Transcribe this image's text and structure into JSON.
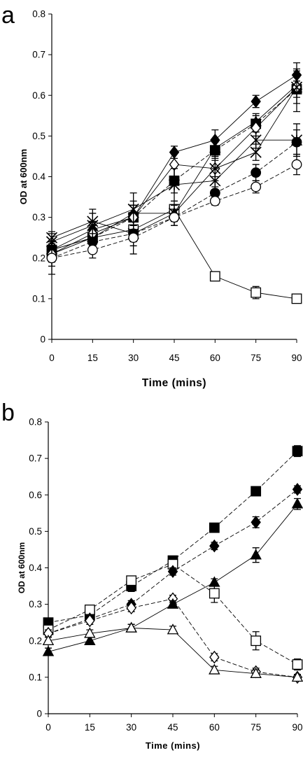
{
  "chart_data": [
    {
      "panel": "a",
      "type": "line",
      "title": "",
      "xlabel": "Time (mins)",
      "ylabel": "OD at 600nm",
      "x": [
        0,
        15,
        30,
        45,
        60,
        75,
        90
      ],
      "x_ticks": [
        "0",
        "15",
        "30",
        "45",
        "60",
        "75",
        "90"
      ],
      "y_ticks": [
        "0",
        "0.1",
        "0.2",
        "0.3",
        "0.4",
        "0.5",
        "0.6",
        "0.7",
        "0.8"
      ],
      "xlim": [
        0,
        90
      ],
      "ylim": [
        0,
        0.8
      ],
      "grid": false,
      "legend": "none",
      "series": [
        {
          "marker": "open-square",
          "line": "solid",
          "values": [
            0.21,
            0.25,
            0.27,
            0.32,
            0.155,
            0.115,
            0.1
          ],
          "err": [
            0.01,
            0.02,
            0.02,
            0.02,
            0.01,
            0.015,
            0.008
          ]
        },
        {
          "marker": "filled-diamond",
          "line": "solid",
          "values": [
            0.22,
            0.27,
            0.3,
            0.46,
            0.49,
            0.585,
            0.65
          ],
          "err": [
            0.02,
            0.02,
            0.03,
            0.015,
            0.025,
            0.015,
            0.015
          ]
        },
        {
          "marker": "filled-square",
          "line": "dashed",
          "values": [
            0.22,
            0.25,
            0.3,
            0.39,
            0.465,
            0.53,
            0.615
          ],
          "err": [
            0.02,
            0.03,
            0.03,
            0.03,
            0.02,
            0.02,
            0.02
          ]
        },
        {
          "marker": "filled-triangle",
          "line": "solid",
          "values": [
            0.22,
            0.25,
            0.31,
            0.31,
            0.47,
            0.535,
            0.625
          ],
          "err": [
            0.02,
            0.03,
            0.02,
            0.02,
            0.02,
            0.02,
            0.02
          ]
        },
        {
          "marker": "open-diamond",
          "line": "solid",
          "values": [
            0.21,
            0.26,
            0.3,
            0.43,
            0.42,
            0.52,
            0.62
          ],
          "err": [
            0.02,
            0.03,
            0.04,
            0.03,
            0.03,
            0.02,
            0.04
          ]
        },
        {
          "marker": "cross",
          "line": "solid",
          "values": [
            0.25,
            0.29,
            0.26,
            0.31,
            0.42,
            0.46,
            0.62
          ],
          "err": [
            0.015,
            0.03,
            0.05,
            0.02,
            0.02,
            0.02,
            0.06
          ]
        },
        {
          "marker": "star",
          "line": "solid",
          "values": [
            0.24,
            0.28,
            0.32,
            0.38,
            0.39,
            0.49,
            0.49
          ],
          "err": [
            0.02,
            0.03,
            0.04,
            0.04,
            0.03,
            0.02,
            0.04
          ]
        },
        {
          "marker": "filled-circle",
          "line": "dashed",
          "values": [
            0.2,
            0.24,
            0.26,
            0.3,
            0.36,
            0.41,
            0.485
          ],
          "err": [
            0.02,
            0.02,
            0.02,
            0.02,
            0.015,
            0.02,
            0.03
          ]
        },
        {
          "marker": "open-circle",
          "line": "dashed",
          "values": [
            0.2,
            0.22,
            0.25,
            0.3,
            0.34,
            0.375,
            0.43
          ],
          "err": [
            0.04,
            0.02,
            0.02,
            0.02,
            0.01,
            0.015,
            0.025
          ]
        }
      ]
    },
    {
      "panel": "b",
      "type": "line",
      "title": "",
      "xlabel": "Time (mins)",
      "ylabel": "OD at 600nm",
      "x": [
        0,
        15,
        30,
        45,
        60,
        75,
        90
      ],
      "x_ticks": [
        "0",
        "15",
        "30",
        "45",
        "60",
        "75",
        "90"
      ],
      "y_ticks": [
        "0",
        "0.1",
        "0.2",
        "0.3",
        "0.4",
        "0.5",
        "0.6",
        "0.7",
        "0.8"
      ],
      "xlim": [
        0,
        90
      ],
      "ylim": [
        0,
        0.8
      ],
      "grid": false,
      "legend": "none",
      "series": [
        {
          "marker": "filled-square",
          "line": "dashed",
          "values": [
            0.25,
            0.27,
            0.35,
            0.42,
            0.51,
            0.61,
            0.72
          ],
          "err": [
            0.01,
            0.01,
            0.015,
            0.01,
            0.01,
            0.008,
            0.015
          ]
        },
        {
          "marker": "open-square",
          "line": "dashed",
          "values": [
            0.23,
            0.285,
            0.365,
            0.41,
            0.33,
            0.2,
            0.135
          ],
          "err": [
            0.01,
            0.01,
            0.01,
            0.01,
            0.025,
            0.025,
            0.015
          ]
        },
        {
          "marker": "filled-diamond",
          "line": "dashed",
          "values": [
            0.22,
            0.26,
            0.3,
            0.39,
            0.46,
            0.525,
            0.615
          ],
          "err": [
            0.01,
            0.01,
            0.01,
            0.01,
            0.01,
            0.015,
            0.01
          ]
        },
        {
          "marker": "open-diamond",
          "line": "dashed",
          "values": [
            0.22,
            0.255,
            0.29,
            0.315,
            0.155,
            0.115,
            0.1
          ],
          "err": [
            0.01,
            0.01,
            0.01,
            0.01,
            0.01,
            0.01,
            0.008
          ]
        },
        {
          "marker": "filled-triangle",
          "line": "solid",
          "values": [
            0.17,
            0.2,
            0.235,
            0.3,
            0.36,
            0.435,
            0.575
          ],
          "err": [
            0.01,
            0.01,
            0.01,
            0.01,
            0.01,
            0.02,
            0.015
          ]
        },
        {
          "marker": "open-triangle",
          "line": "solid",
          "values": [
            0.2,
            0.22,
            0.235,
            0.23,
            0.12,
            0.11,
            0.1
          ],
          "err": [
            0.01,
            0.01,
            0.01,
            0.01,
            0.01,
            0.01,
            0.008
          ]
        }
      ]
    }
  ],
  "labels": {
    "panel_a_letter": "a",
    "panel_b_letter": "b"
  }
}
